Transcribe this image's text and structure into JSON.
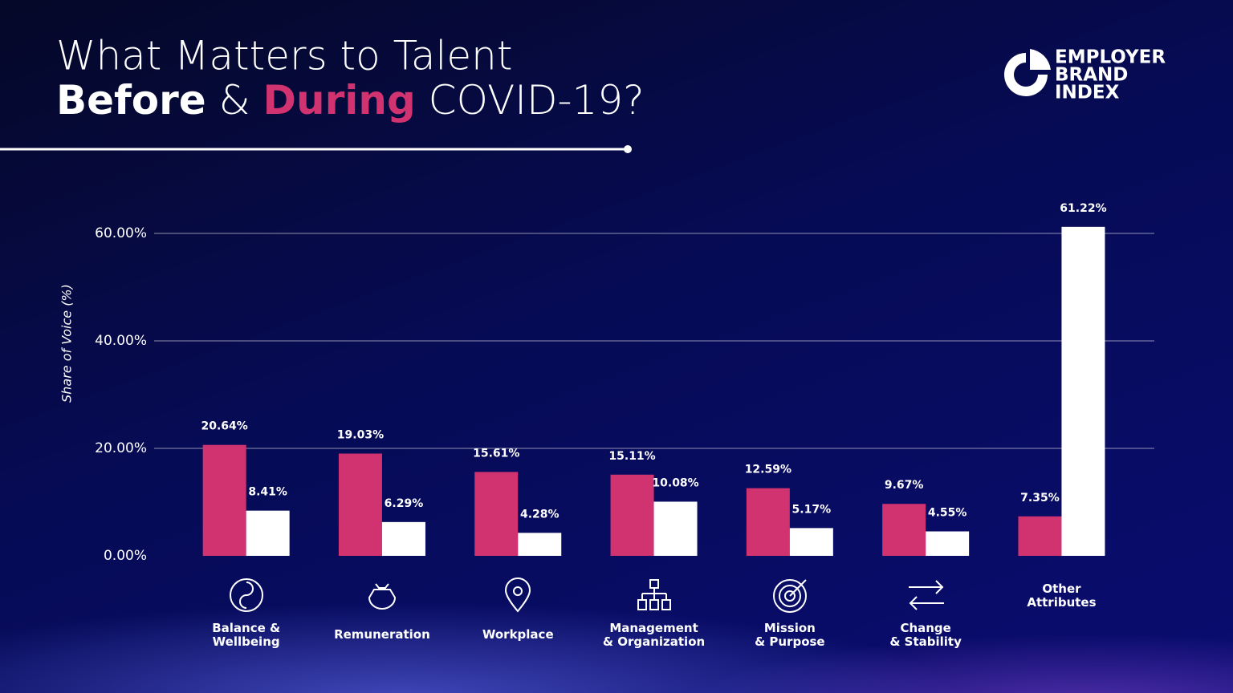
{
  "chart_data": {
    "type": "bar",
    "title": {
      "line1": "What Matters to Talent",
      "before": "Before",
      "amp": " & ",
      "during": "During",
      "rest": " COVID-19?"
    },
    "logo": [
      "EMPLOYER",
      "BRAND",
      "INDEX"
    ],
    "y_label": "Share of Voice (%)",
    "categories": [
      "Balance &\nWellbeing",
      "Remuneration",
      "Workplace",
      "Management\n& Organization",
      "Mission\n& Purpose",
      "Change\n& Stability",
      "Other\nAttributes"
    ],
    "series": [
      {
        "color": "#d13270",
        "values": [
          20.64,
          19.03,
          15.61,
          15.11,
          12.59,
          9.67,
          7.35
        ],
        "value_labels": [
          "20.64%",
          "19.03%",
          "15.61%",
          "15.11%",
          "12.59%",
          "9.67%",
          "7.35%"
        ]
      },
      {
        "color": "#ffffff",
        "values": [
          8.41,
          6.29,
          4.28,
          10.08,
          5.17,
          4.55,
          61.22
        ],
        "value_labels": [
          "8.41%",
          "6.29%",
          "4.28%",
          "10.08%",
          "5.17%",
          "4.55%",
          "61.22%"
        ]
      }
    ],
    "ylim": [
      0,
      60
    ],
    "yticks": [
      {
        "value": 0,
        "label": "0.00%"
      },
      {
        "value": 20,
        "label": "20.00%"
      },
      {
        "value": 40,
        "label": "40.00%"
      },
      {
        "value": 60,
        "label": "60.00%"
      }
    ],
    "grid": true
  }
}
